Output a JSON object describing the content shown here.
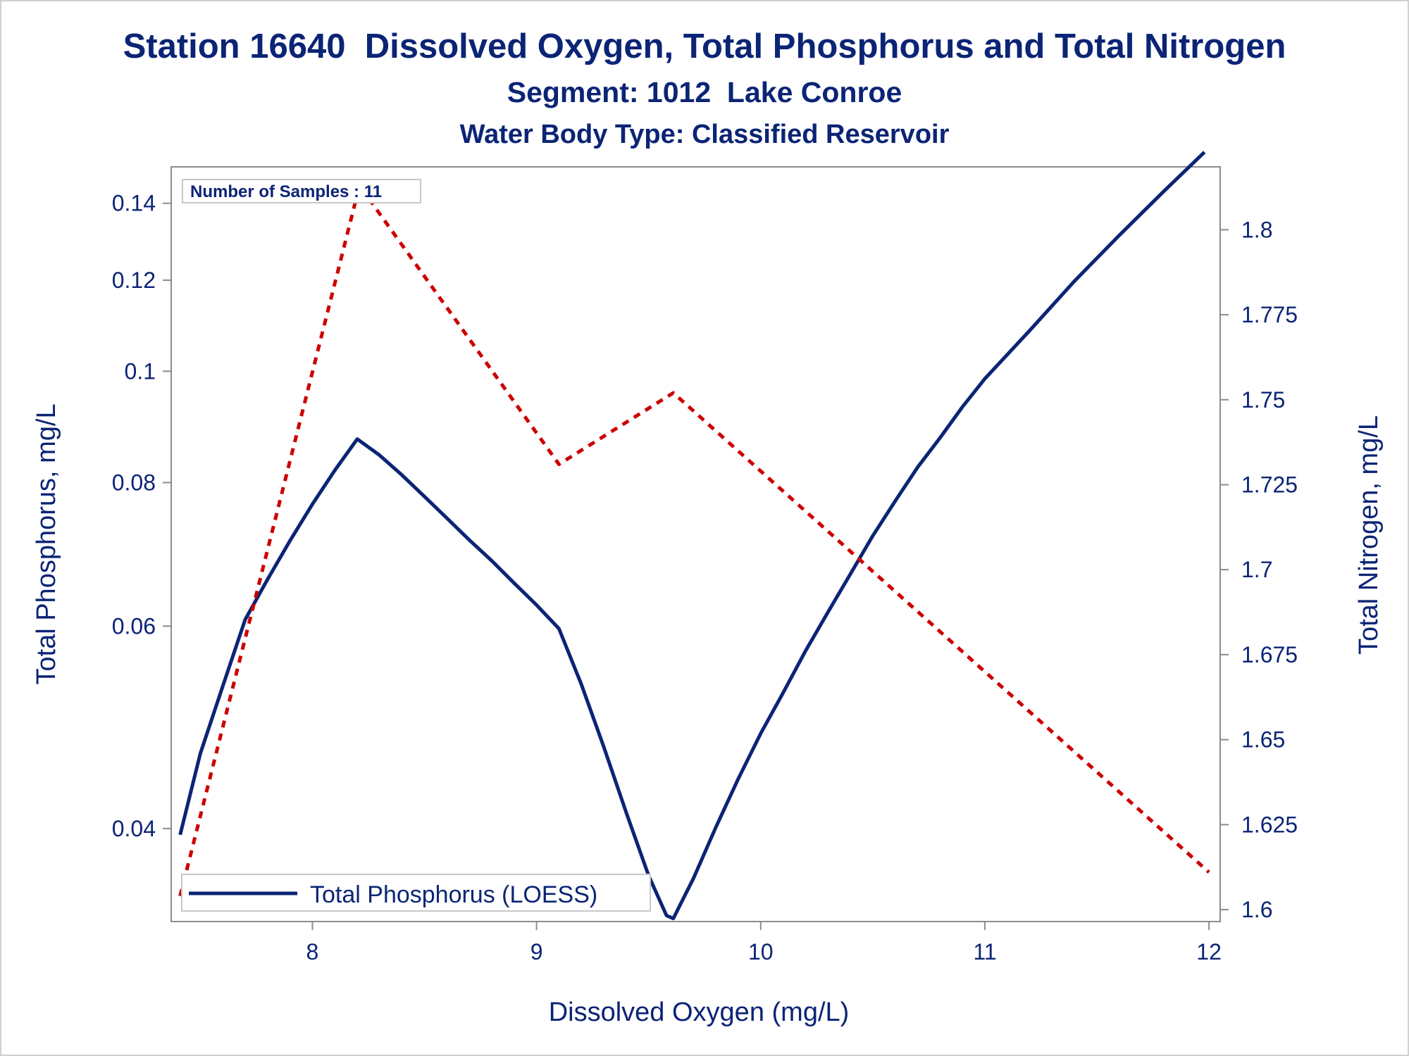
{
  "chart_data": {
    "type": "line",
    "title": "Station 16640  Dissolved Oxygen, Total Phosphorus and Total Nitrogen",
    "subtitle": "Segment: 1012  Lake Conroe",
    "subtitle2": "Water Body Type: Classified Reservoir",
    "inset_label": "Number of Samples : 11",
    "xlabel": "Dissolved Oxygen (mg/L)",
    "ylabel": "Total Phosphorus, mg/L",
    "y2label": "Total Nitrogen, mg/L",
    "xlim": [
      7.37,
      12.05
    ],
    "ylim": [
      0.0332,
      0.1506
    ],
    "y_scale": "log",
    "y2lim": [
      1.5965,
      1.8185
    ],
    "xticks": [
      8,
      9,
      10,
      11,
      12
    ],
    "xtick_labels": [
      "8",
      "9",
      "10",
      "11",
      "12"
    ],
    "yticks": [
      0.04,
      0.06,
      0.08,
      0.1,
      0.12,
      0.14
    ],
    "ytick_labels": [
      "0.04",
      "0.06",
      "0.08",
      "0.1",
      "0.12",
      "0.14"
    ],
    "y2ticks": [
      1.6,
      1.625,
      1.65,
      1.675,
      1.7,
      1.725,
      1.75,
      1.775,
      1.8
    ],
    "y2tick_labels": [
      "1.6",
      "1.625",
      "1.65",
      "1.675",
      "1.7",
      "1.725",
      "1.75",
      "1.775",
      "1.8"
    ],
    "legend": {
      "position": "bottom-left",
      "entries": [
        "Total Phosphorus (LOESS)"
      ]
    },
    "grid": false,
    "colors": {
      "axis": "#8c8c8c",
      "text": "#0b2475",
      "phosphorus": "#0b2475",
      "nitrogen": "#cc0000"
    },
    "series": [
      {
        "name": "Total Phosphorus (LOESS)",
        "axis": "left",
        "style": "solid",
        "x": [
          7.41,
          7.5,
          7.6,
          7.7,
          7.8,
          7.9,
          8.0,
          8.1,
          8.2,
          8.3,
          8.4,
          8.5,
          8.6,
          8.7,
          8.8,
          8.9,
          9.0,
          9.1,
          9.2,
          9.3,
          9.4,
          9.5,
          9.58,
          9.61,
          9.7,
          9.8,
          9.9,
          10.0,
          10.1,
          10.2,
          10.3,
          10.4,
          10.5,
          10.6,
          10.7,
          10.8,
          10.9,
          11.0,
          11.2,
          11.4,
          11.6,
          11.8,
          11.98
        ],
        "y": [
          0.0395,
          0.0465,
          0.0532,
          0.0608,
          0.0659,
          0.0712,
          0.0766,
          0.082,
          0.0873,
          0.0845,
          0.0812,
          0.0778,
          0.0745,
          0.0713,
          0.0684,
          0.0654,
          0.0626,
          0.0597,
          0.0534,
          0.0471,
          0.0413,
          0.0364,
          0.0336,
          0.0334,
          0.0362,
          0.0401,
          0.0442,
          0.0484,
          0.0525,
          0.0571,
          0.0617,
          0.0666,
          0.0719,
          0.0771,
          0.0825,
          0.0875,
          0.0931,
          0.0985,
          0.1085,
          0.1198,
          0.1313,
          0.1435,
          0.1551
        ]
      },
      {
        "name": "Total Nitrogen",
        "axis": "right",
        "style": "dashed",
        "x": [
          7.41,
          8.21,
          9.1,
          9.61,
          12.0
        ],
        "y": [
          1.604,
          1.813,
          1.731,
          1.752,
          1.611
        ]
      }
    ]
  }
}
